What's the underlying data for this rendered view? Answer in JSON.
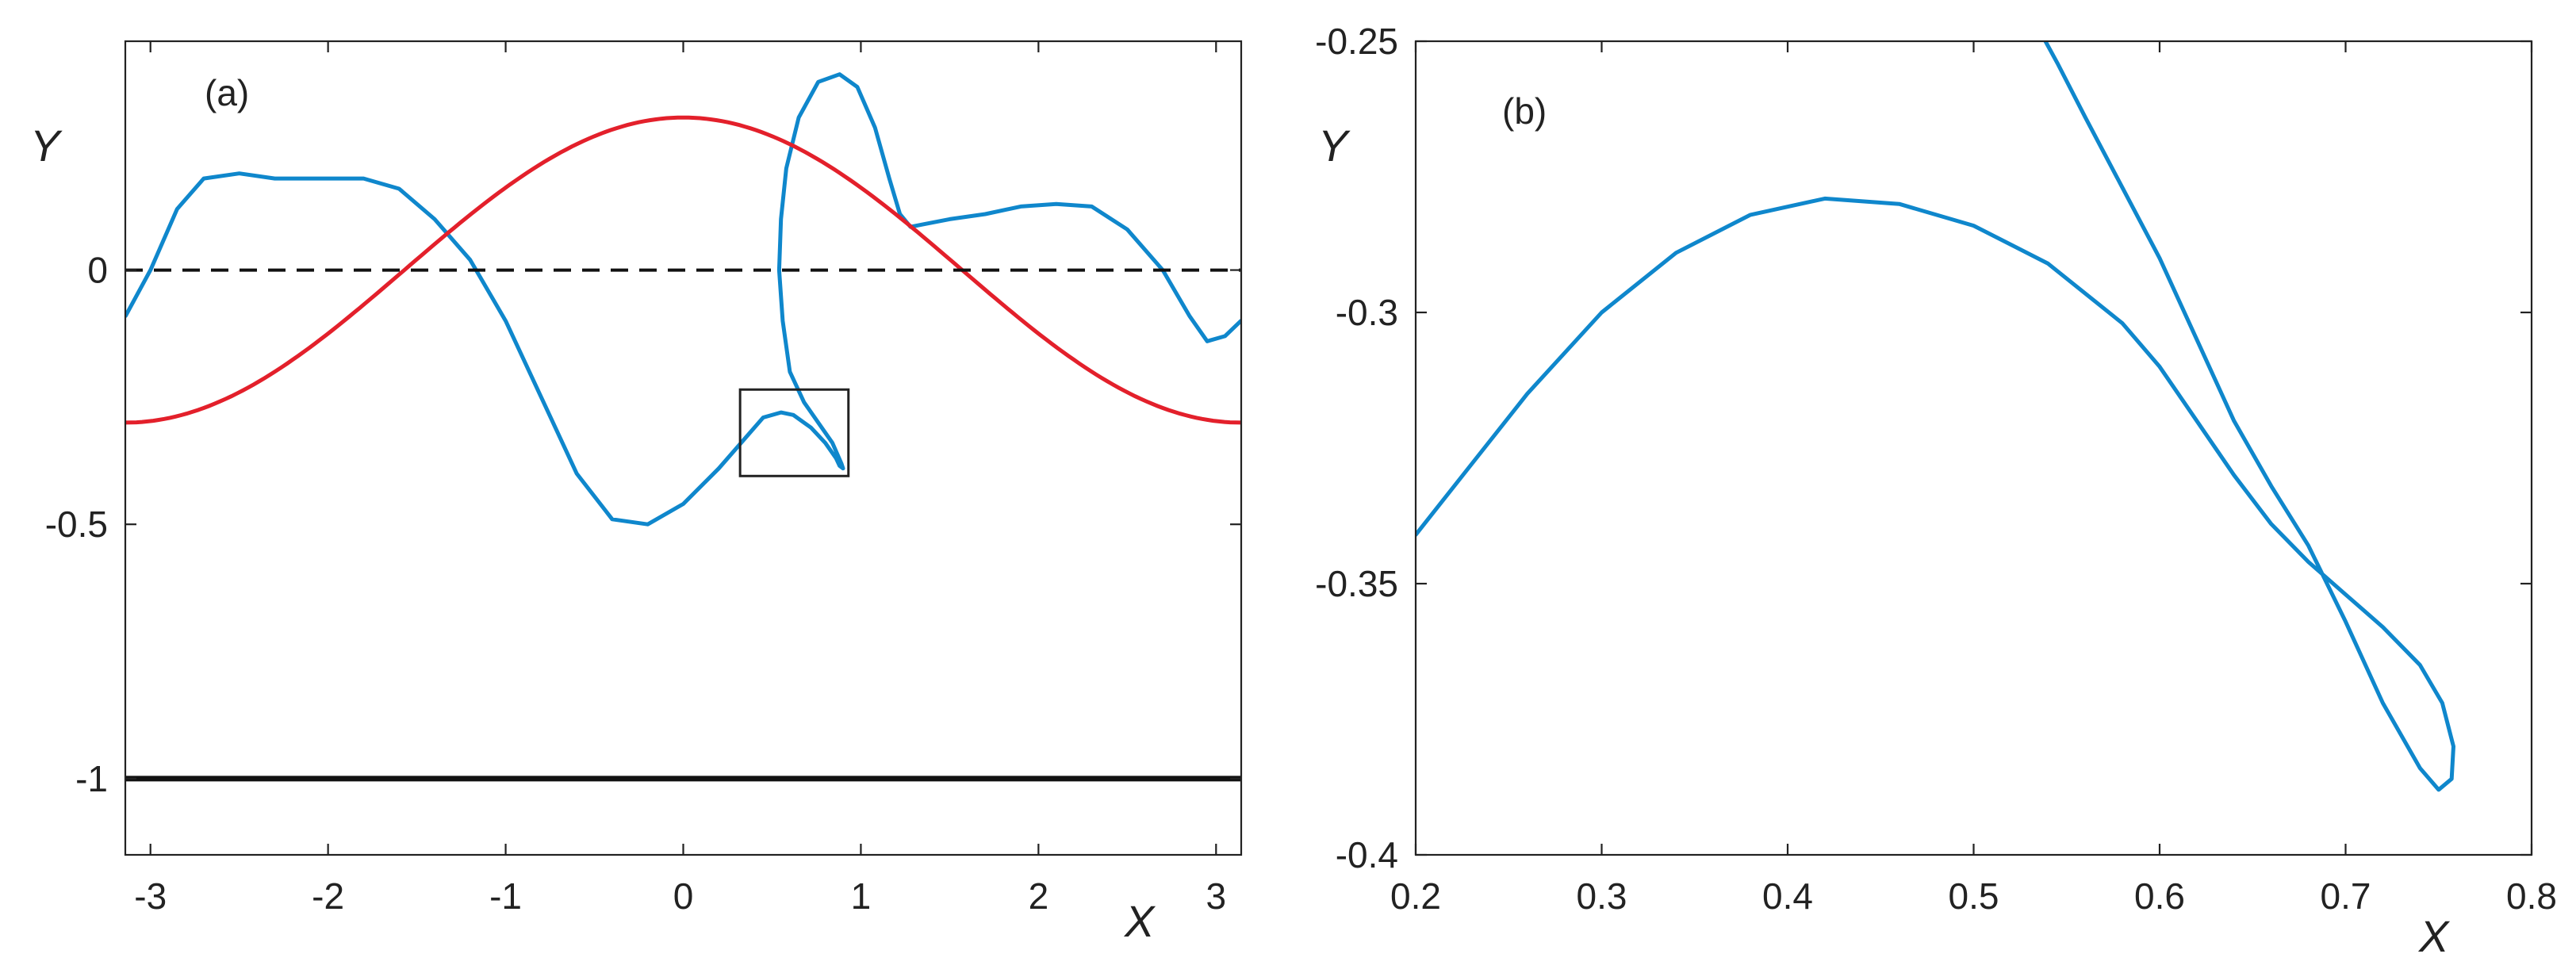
{
  "colors": {
    "blue": "#0f87cc",
    "red": "#e3202b",
    "black": "#111111"
  },
  "chart_data": [
    {
      "type": "line",
      "panel_label": "(a)",
      "xlabel": "X",
      "ylabel": "Y",
      "xlim": [
        -3.14159,
        3.14159
      ],
      "ylim": [
        -1.15,
        0.45
      ],
      "xticks": [
        -3,
        -2,
        -1,
        0,
        1,
        2,
        3
      ],
      "xtick_labels": [
        "-3",
        "-2",
        "-1",
        "0",
        "1",
        "2",
        "3"
      ],
      "yticks": [
        -1,
        -0.5,
        0
      ],
      "ytick_labels": [
        "-1",
        "-0.5",
        "0"
      ],
      "inset_box": {
        "x": [
          0.32,
          0.93
        ],
        "y": [
          -0.405,
          -0.235
        ]
      },
      "series": [
        {
          "name": "blue interface",
          "color": "#0f87cc",
          "style": "solid",
          "points": [
            [
              -3.14,
              -0.09
            ],
            [
              -3.0,
              0.0
            ],
            [
              -2.85,
              0.12
            ],
            [
              -2.7,
              0.18
            ],
            [
              -2.5,
              0.19
            ],
            [
              -2.3,
              0.18
            ],
            [
              -2.0,
              0.18
            ],
            [
              -1.8,
              0.18
            ],
            [
              -1.6,
              0.16
            ],
            [
              -1.4,
              0.1
            ],
            [
              -1.2,
              0.02
            ],
            [
              -1.0,
              -0.1
            ],
            [
              -0.8,
              -0.25
            ],
            [
              -0.6,
              -0.4
            ],
            [
              -0.4,
              -0.49
            ],
            [
              -0.2,
              -0.5
            ],
            [
              0.0,
              -0.46
            ],
            [
              0.2,
              -0.39
            ],
            [
              0.35,
              -0.33
            ],
            [
              0.45,
              -0.29
            ],
            [
              0.55,
              -0.28
            ],
            [
              0.62,
              -0.285
            ],
            [
              0.72,
              -0.31
            ],
            [
              0.8,
              -0.34
            ],
            [
              0.86,
              -0.37
            ],
            [
              0.88,
              -0.385
            ],
            [
              0.9,
              -0.39
            ],
            [
              0.89,
              -0.38
            ],
            [
              0.84,
              -0.34
            ],
            [
              0.76,
              -0.3
            ],
            [
              0.68,
              -0.26
            ],
            [
              0.6,
              -0.2
            ],
            [
              0.56,
              -0.1
            ],
            [
              0.54,
              0.0
            ],
            [
              0.55,
              0.1
            ],
            [
              0.58,
              0.2
            ],
            [
              0.65,
              0.3
            ],
            [
              0.76,
              0.37
            ],
            [
              0.88,
              0.385
            ],
            [
              0.98,
              0.36
            ],
            [
              1.08,
              0.28
            ],
            [
              1.16,
              0.18
            ],
            [
              1.22,
              0.11
            ],
            [
              1.28,
              0.085
            ],
            [
              1.35,
              0.09
            ],
            [
              1.5,
              0.1
            ],
            [
              1.7,
              0.11
            ],
            [
              1.9,
              0.125
            ],
            [
              2.1,
              0.13
            ],
            [
              2.3,
              0.125
            ],
            [
              2.5,
              0.08
            ],
            [
              2.7,
              0.0
            ],
            [
              2.85,
              -0.09
            ],
            [
              2.95,
              -0.14
            ],
            [
              3.05,
              -0.13
            ],
            [
              3.14,
              -0.1
            ]
          ]
        },
        {
          "name": "red curve",
          "color": "#e3202b",
          "style": "solid",
          "function": "0.3*cos(x)"
        },
        {
          "name": "dashed zero line",
          "color": "#111111",
          "style": "dashed",
          "y": 0
        },
        {
          "name": "bottom wall",
          "color": "#111111",
          "style": "solid-thick",
          "y": -1
        }
      ]
    },
    {
      "type": "line",
      "panel_label": "(b)",
      "xlabel": "X",
      "ylabel": "Y",
      "xlim": [
        0.2,
        0.8
      ],
      "ylim": [
        -0.4,
        -0.25
      ],
      "xticks": [
        0.2,
        0.3,
        0.4,
        0.5,
        0.6,
        0.7,
        0.8
      ],
      "xtick_labels": [
        "0.2",
        "0.3",
        "0.4",
        "0.5",
        "0.6",
        "0.7",
        "0.8"
      ],
      "yticks": [
        -0.25,
        -0.3,
        -0.35,
        -0.4
      ],
      "ytick_labels": [
        "-0.25",
        "-0.3",
        "-0.35",
        "-0.4"
      ],
      "series": [
        {
          "name": "blue interface zoom",
          "color": "#0f87cc",
          "style": "solid",
          "points": [
            [
              0.2,
              -0.341
            ],
            [
              0.23,
              -0.328
            ],
            [
              0.26,
              -0.315
            ],
            [
              0.3,
              -0.3
            ],
            [
              0.34,
              -0.289
            ],
            [
              0.38,
              -0.282
            ],
            [
              0.42,
              -0.279
            ],
            [
              0.46,
              -0.28
            ],
            [
              0.5,
              -0.284
            ],
            [
              0.54,
              -0.291
            ],
            [
              0.58,
              -0.302
            ],
            [
              0.6,
              -0.31
            ],
            [
              0.62,
              -0.32
            ],
            [
              0.64,
              -0.33
            ],
            [
              0.66,
              -0.339
            ],
            [
              0.68,
              -0.346
            ],
            [
              0.7,
              -0.352
            ],
            [
              0.72,
              -0.358
            ],
            [
              0.74,
              -0.365
            ],
            [
              0.752,
              -0.372
            ],
            [
              0.758,
              -0.38
            ],
            [
              0.757,
              -0.386
            ],
            [
              0.75,
              -0.388
            ],
            [
              0.74,
              -0.384
            ],
            [
              0.72,
              -0.372
            ],
            [
              0.7,
              -0.357
            ],
            [
              0.68,
              -0.343
            ],
            [
              0.66,
              -0.332
            ],
            [
              0.64,
              -0.32
            ],
            [
              0.62,
              -0.305
            ],
            [
              0.6,
              -0.29
            ],
            [
              0.58,
              -0.277
            ],
            [
              0.56,
              -0.264
            ],
            [
              0.545,
              -0.254
            ],
            [
              0.537,
              -0.249
            ]
          ]
        }
      ]
    }
  ]
}
